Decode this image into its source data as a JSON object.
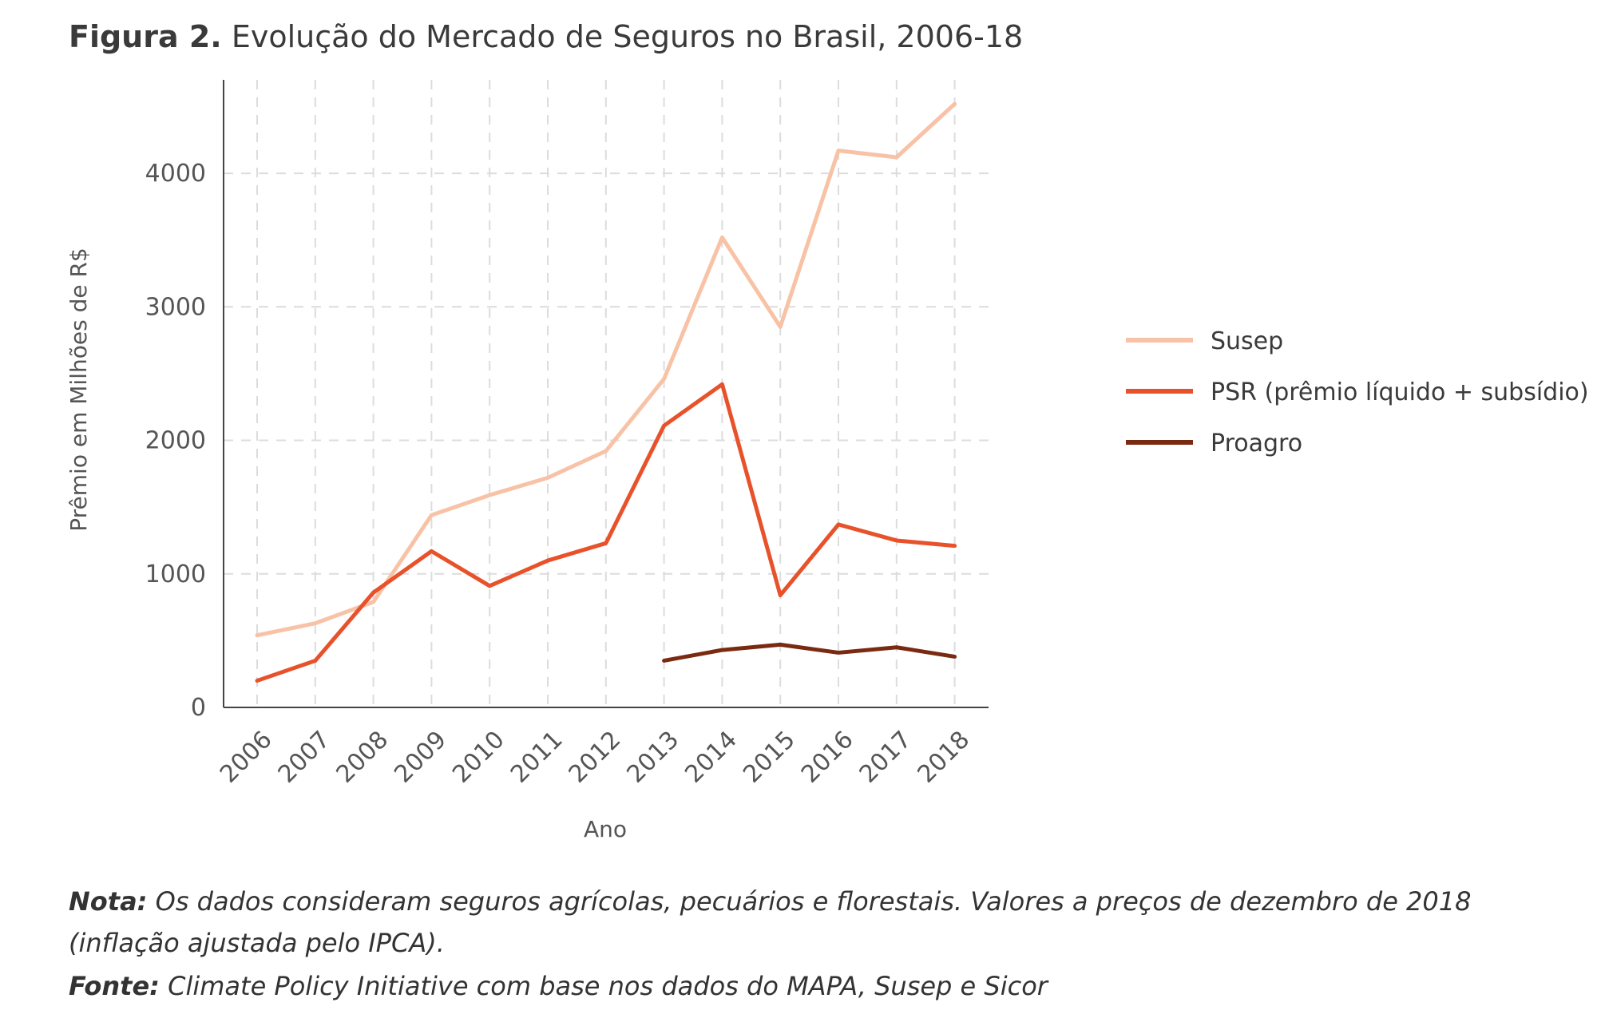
{
  "figure": {
    "title_bold": "Figura 2.",
    "title_text": "Evolução do Mercado de Seguros no Brasil, 2006-18"
  },
  "chart_data": {
    "type": "line",
    "xlabel": "Ano",
    "ylabel": "Prêmio em Milhões de R$",
    "x": [
      "2006",
      "2007",
      "2008",
      "2009",
      "2010",
      "2011",
      "2012",
      "2013",
      "2014",
      "2015",
      "2016",
      "2017",
      "2018"
    ],
    "ylim": [
      0,
      4700
    ],
    "yticks": [
      0,
      1000,
      2000,
      3000,
      4000
    ],
    "grid": true,
    "legend_position": "right",
    "series": [
      {
        "name": "Susep",
        "color": "#f8c2a6",
        "values": [
          540,
          630,
          790,
          1440,
          1590,
          1720,
          1920,
          2460,
          3520,
          2850,
          4170,
          4120,
          4520
        ]
      },
      {
        "name": "PSR (prêmio líquido + subsídio)",
        "color": "#e8522b",
        "values": [
          200,
          350,
          860,
          1170,
          910,
          1100,
          1230,
          2110,
          2420,
          840,
          1370,
          1250,
          1210
        ]
      },
      {
        "name": "Proagro",
        "color": "#7a2a10",
        "values": [
          null,
          null,
          null,
          null,
          null,
          null,
          null,
          350,
          430,
          470,
          410,
          450,
          380
        ]
      }
    ]
  },
  "footer": {
    "note_label": "Nota:",
    "note_text": " Os dados consideram seguros agrícolas, pecuários e florestais. Valores a preços de dezembro de 2018",
    "note_text_2": "(inflação ajustada pelo IPCA).",
    "source_label": "Fonte:",
    "source_text": " Climate Policy Initiative com base nos dados do MAPA, Susep e Sicor"
  }
}
